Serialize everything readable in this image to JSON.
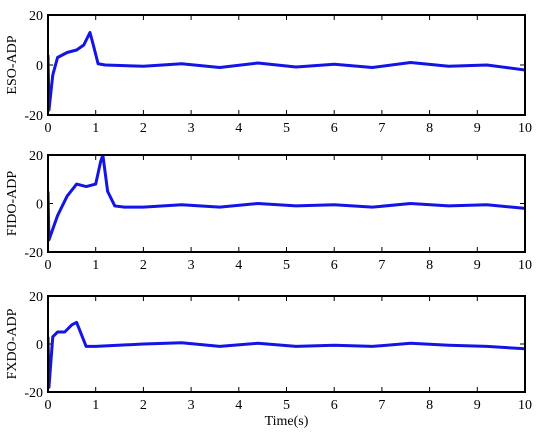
{
  "chart_data": [
    {
      "type": "line",
      "ylabel": "ESO-ADP",
      "color": "#1414e6",
      "xlim": [
        0,
        10
      ],
      "ylim": [
        -20,
        20
      ],
      "xticks": [
        0,
        1,
        2,
        3,
        4,
        5,
        6,
        7,
        8,
        9,
        10
      ],
      "yticks": [
        -20,
        0,
        20
      ],
      "x": [
        0,
        0.02,
        0.1,
        0.2,
        0.4,
        0.6,
        0.75,
        0.88,
        0.95,
        1.05,
        1.2,
        2,
        2.8,
        3.6,
        4.4,
        5.2,
        6,
        6.8,
        7.6,
        8.4,
        9.2,
        10
      ],
      "values": [
        4,
        -18,
        -4,
        3,
        5,
        6,
        8,
        13,
        8,
        0.5,
        0,
        -0.5,
        0.5,
        -1,
        0.8,
        -0.8,
        0.3,
        -1,
        1,
        -0.5,
        0,
        -2
      ]
    },
    {
      "type": "line",
      "ylabel": "FIDO-ADP",
      "color": "#1414e6",
      "xlim": [
        0,
        10
      ],
      "ylim": [
        -20,
        20
      ],
      "xticks": [
        0,
        1,
        2,
        3,
        4,
        5,
        6,
        7,
        8,
        9,
        10
      ],
      "yticks": [
        -20,
        0,
        20
      ],
      "x": [
        0,
        0.02,
        0.2,
        0.4,
        0.6,
        0.8,
        1.0,
        1.1,
        1.15,
        1.25,
        1.4,
        1.6,
        2,
        2.8,
        3.6,
        4.4,
        5.2,
        6,
        6.8,
        7.6,
        8.4,
        9.2,
        10
      ],
      "values": [
        5,
        -15,
        -5,
        3,
        8,
        7,
        8,
        17,
        20,
        5,
        -1,
        -1.5,
        -1.5,
        -0.5,
        -1.5,
        0,
        -1,
        -0.5,
        -1.5,
        0,
        -1,
        -0.5,
        -2
      ]
    },
    {
      "type": "line",
      "ylabel": "FXDO-ADP",
      "xlabel": "Time(s)",
      "color": "#1414e6",
      "xlim": [
        0,
        10
      ],
      "ylim": [
        -20,
        20
      ],
      "xticks": [
        0,
        1,
        2,
        3,
        4,
        5,
        6,
        7,
        8,
        9,
        10
      ],
      "yticks": [
        -20,
        0,
        20
      ],
      "x": [
        0,
        0.02,
        0.1,
        0.2,
        0.35,
        0.5,
        0.6,
        0.7,
        0.8,
        1.0,
        2,
        2.8,
        3.6,
        4.4,
        5.2,
        6,
        6.8,
        7.6,
        8.4,
        9.2,
        10
      ],
      "values": [
        3,
        -18,
        3,
        5,
        5,
        8,
        9,
        4,
        -1,
        -1,
        0,
        0.5,
        -1,
        0.3,
        -1,
        -0.5,
        -1,
        0.3,
        -0.5,
        -1,
        -2
      ]
    }
  ]
}
